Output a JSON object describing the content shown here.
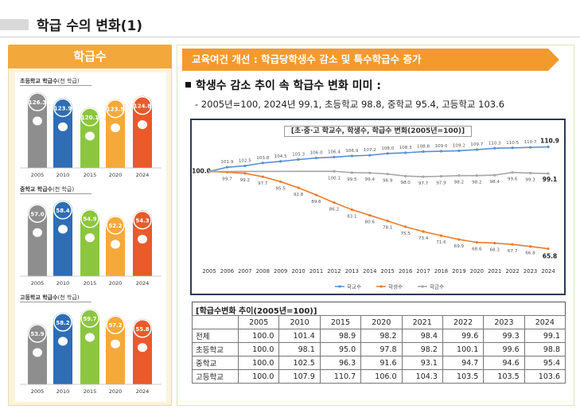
{
  "page_title": "학급 수의 변화(1)",
  "left_panel": {
    "header": "학급수",
    "segments": [
      {
        "label": "초등학교 학급수",
        "unit": "(천 학급)",
        "years": [
          "2005",
          "2010",
          "2015",
          "2020",
          "2024"
        ],
        "values": [
          126.3,
          123.9,
          120.1,
          123.5,
          124.8
        ]
      },
      {
        "label": "중학교 학급수",
        "unit": "(천 학급)",
        "years": [
          "2005",
          "2010",
          "2015",
          "2020",
          "2024"
        ],
        "values": [
          57.0,
          58.4,
          54.9,
          52.2,
          54.3
        ]
      },
      {
        "label": "고등학교 학급수",
        "unit": "(천 학급)",
        "years": [
          "2005",
          "2010",
          "2015",
          "2020",
          "2024"
        ],
        "values": [
          53.9,
          58.2,
          59.7,
          57.2,
          55.8
        ]
      }
    ],
    "colors": [
      "#8e8e8e",
      "#2f6db5",
      "#8cc63f",
      "#f4a93a",
      "#ea5a2a"
    ]
  },
  "right_panel": {
    "banner": "교육여건 개선 : 학급당학생수 감소 및 특수학급수 증가",
    "heading": "학생수 감소 추이 속 학급수 변화 미미 :",
    "subline": "- 2005년=100, 2024년 99.1, 초등학교 98.8, 중학교 95.4, 고등학교 103.6"
  },
  "chart_data": [
    {
      "type": "bar",
      "title": "초등학교 학급수(천 학급)",
      "categories": [
        "2005",
        "2010",
        "2015",
        "2020",
        "2024"
      ],
      "values": [
        126.3,
        123.9,
        120.1,
        123.5,
        124.8
      ]
    },
    {
      "type": "bar",
      "title": "중학교 학급수(천 학급)",
      "categories": [
        "2005",
        "2010",
        "2015",
        "2020",
        "2024"
      ],
      "values": [
        57.0,
        58.4,
        54.9,
        52.2,
        54.3
      ]
    },
    {
      "type": "bar",
      "title": "고등학교 학급수(천 학급)",
      "categories": [
        "2005",
        "2010",
        "2015",
        "2020",
        "2024"
      ],
      "values": [
        53.9,
        58.2,
        59.7,
        57.2,
        55.8
      ]
    },
    {
      "type": "line",
      "title": "[초·중·고 학교수, 학생수, 학급수 변화(2005년=100)]",
      "x": [
        "2005",
        "2006",
        "2007",
        "2008",
        "2009",
        "2010",
        "2011",
        "2012",
        "2013",
        "2014",
        "2015",
        "2016",
        "2017",
        "2018",
        "2019",
        "2020",
        "2021",
        "2022",
        "2023",
        "2024"
      ],
      "ylim": [
        60,
        115
      ],
      "legend": "bottom",
      "series": [
        {
          "name": "학교수",
          "color": "#5b8fd0",
          "values": [
            100.0,
            101.9,
            102.5,
            103.8,
            104.5,
            105.3,
            106.0,
            106.4,
            106.9,
            107.2,
            108.0,
            108.3,
            108.8,
            109.0,
            109.2,
            109.7,
            110.3,
            110.5,
            110.7,
            110.9
          ]
        },
        {
          "name": "학생수",
          "color": "#ec7b2a",
          "values": [
            100.0,
            99.7,
            99.2,
            97.7,
            95.5,
            92.8,
            89.6,
            86.2,
            83.1,
            80.6,
            78.1,
            75.5,
            73.4,
            71.6,
            69.9,
            68.6,
            68.3,
            67.7,
            66.8,
            65.8
          ]
        },
        {
          "name": "학급수",
          "color": "#a6a6a6",
          "values": [
            100.0,
            null,
            null,
            null,
            null,
            null,
            null,
            100.1,
            99.5,
            99.4,
            98.9,
            98.0,
            97.7,
            97.9,
            98.2,
            98.2,
            98.4,
            99.6,
            99.3,
            99.1
          ]
        }
      ]
    }
  ],
  "table": {
    "title": "[학급수변화 추이(2005년=100)]",
    "columns": [
      "",
      "2005",
      "2010",
      "2015",
      "2020",
      "2021",
      "2022",
      "2023",
      "2024"
    ],
    "rows": [
      {
        "label": "전체",
        "values": [
          "100.0",
          "101.4",
          "98.9",
          "98.2",
          "98.4",
          "99.6",
          "99.3",
          "99.1"
        ]
      },
      {
        "label": "초등학교",
        "values": [
          "100.0",
          "98.1",
          "95.0",
          "97.8",
          "98.2",
          "100.1",
          "99.6",
          "98.8"
        ]
      },
      {
        "label": "중학교",
        "values": [
          "100.0",
          "102.5",
          "96.3",
          "91.6",
          "93.1",
          "94.7",
          "94.6",
          "95.4"
        ]
      },
      {
        "label": "고등학교",
        "values": [
          "100.0",
          "107.9",
          "110.7",
          "106.0",
          "104.3",
          "103.5",
          "103.5",
          "103.6"
        ]
      }
    ]
  }
}
